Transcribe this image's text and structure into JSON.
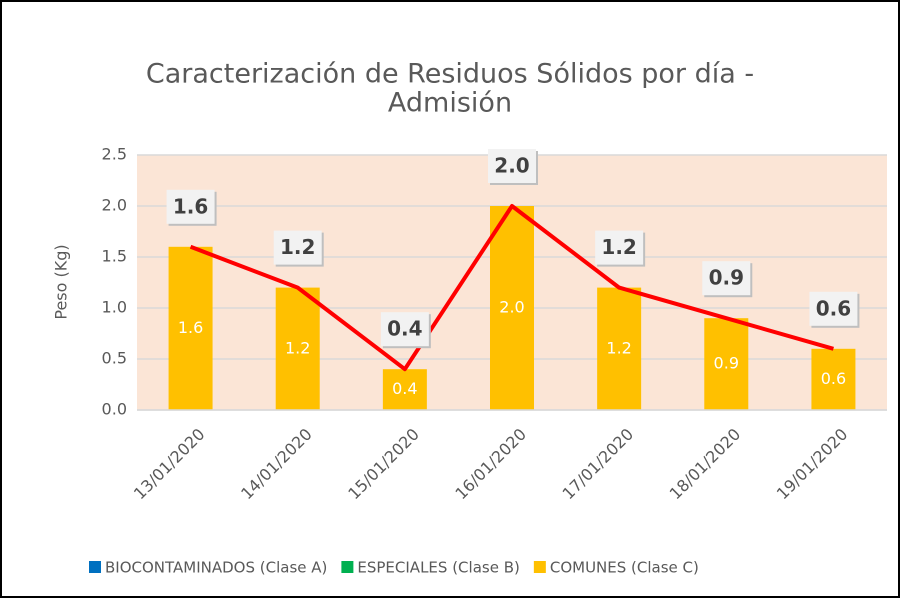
{
  "chart_data": {
    "type": "bar",
    "title": "Caracterización de Residuos Sólidos por día -",
    "title_line2": "Admisión",
    "y_label": "Peso (Kg)",
    "categories": [
      "13/01/2020",
      "14/01/2020",
      "15/01/2020",
      "16/01/2020",
      "17/01/2020",
      "18/01/2020",
      "19/01/2020"
    ],
    "series": [
      {
        "name": "BIOCONTAMINADOS (Clase A)",
        "color": "#0070c0",
        "values": [
          0,
          0,
          0,
          0,
          0,
          0,
          0
        ]
      },
      {
        "name": "ESPECIALES (Clase B)",
        "color": "#00b050",
        "values": [
          0,
          0,
          0,
          0,
          0,
          0,
          0
        ]
      },
      {
        "name": "COMUNES (Clase C)",
        "color": "#ffc000",
        "values": [
          1.6,
          1.2,
          0.4,
          2.0,
          1.2,
          0.9,
          0.6
        ],
        "value_labels": [
          "1.6",
          "1.2",
          "0.4",
          "2.0",
          "1.2",
          "0.9",
          "0.6"
        ]
      }
    ],
    "line": {
      "color": "#ff0000",
      "values": [
        1.6,
        1.2,
        0.4,
        2.0,
        1.2,
        0.9,
        0.6
      ],
      "value_labels": [
        "1.6",
        "1.2",
        "0.4",
        "2.0",
        "1.2",
        "0.9",
        "0.6"
      ]
    },
    "ylim": [
      0,
      2.5
    ],
    "yticks": [
      {
        "value": 0,
        "label": "0.0"
      },
      0.5,
      {
        "value": 1,
        "label": "1.0"
      },
      1.5,
      {
        "value": 2,
        "label": "2.0"
      },
      2.5
    ],
    "grid": true,
    "plot_background": "#fbe5d6",
    "legend": "bottom"
  }
}
